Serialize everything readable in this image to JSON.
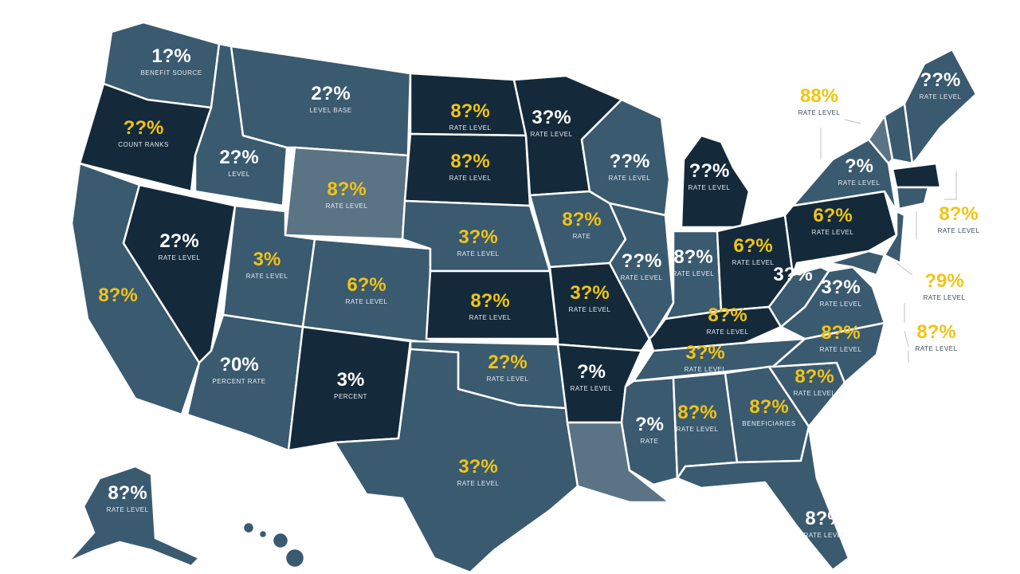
{
  "colors": {
    "background": "#ffffff",
    "dark": "#142a3b",
    "mid": "#3a5a70",
    "light": "#5b7485",
    "label_white": "#ffffff",
    "label_yellow": "#f2c414",
    "callout_text": "#3a4a58"
  },
  "states": [
    {
      "id": "WA",
      "pct": "1?%",
      "sub": "BENEFIT SOURCE"
    },
    {
      "id": "OR",
      "pct": "??%",
      "sub": "COUNT RANKS"
    },
    {
      "id": "CA",
      "pct": "8?%",
      "sub": ""
    },
    {
      "id": "NV",
      "pct": "2?%",
      "sub": "RATE LEVEL"
    },
    {
      "id": "ID",
      "pct": "2?%",
      "sub": "LEVEL"
    },
    {
      "id": "MT",
      "pct": "2?%",
      "sub": "LEVEL BASE"
    },
    {
      "id": "WY",
      "pct": "8?%",
      "sub": "RATE LEVEL"
    },
    {
      "id": "UT",
      "pct": "3%",
      "sub": "RATE LEVEL"
    },
    {
      "id": "CO",
      "pct": "6?%",
      "sub": "RATE LEVEL"
    },
    {
      "id": "AZ",
      "pct": "?0%",
      "sub": "PERCENT RATE"
    },
    {
      "id": "NM",
      "pct": "3%",
      "sub": "PERCENT"
    },
    {
      "id": "ND",
      "pct": "8?%",
      "sub": "RATE LEVEL"
    },
    {
      "id": "SD",
      "pct": "8?%",
      "sub": "RATE LEVEL"
    },
    {
      "id": "NE",
      "pct": "3?%",
      "sub": "RATE LEVEL"
    },
    {
      "id": "KS",
      "pct": "8?%",
      "sub": "RATE LEVEL"
    },
    {
      "id": "OK",
      "pct": "2?%",
      "sub": "RATE LEVEL"
    },
    {
      "id": "TX",
      "pct": "3?%",
      "sub": "RATE LEVEL"
    },
    {
      "id": "MN",
      "pct": "3?%",
      "sub": "RATE LEVEL"
    },
    {
      "id": "IA",
      "pct": "8?%",
      "sub": "RATE"
    },
    {
      "id": "MO",
      "pct": "3?%",
      "sub": "RATE LEVEL"
    },
    {
      "id": "AR",
      "pct": "?%",
      "sub": "RATE LEVEL"
    },
    {
      "id": "LA",
      "pct": "",
      "sub": ""
    },
    {
      "id": "WI",
      "pct": "??%",
      "sub": "RATE LEVEL"
    },
    {
      "id": "MI",
      "pct": "??%",
      "sub": "RATE LEVEL"
    },
    {
      "id": "IL",
      "pct": "??%",
      "sub": "RATE LEVEL"
    },
    {
      "id": "IN",
      "pct": "8?%",
      "sub": "RATE LEVEL"
    },
    {
      "id": "OH",
      "pct": "6?%",
      "sub": "RATE LEVEL"
    },
    {
      "id": "KY",
      "pct": "8?%",
      "sub": "RATE LEVEL"
    },
    {
      "id": "TN",
      "pct": "3?%",
      "sub": "RATE LEVEL"
    },
    {
      "id": "MS",
      "pct": "?%",
      "sub": "RATE"
    },
    {
      "id": "AL",
      "pct": "8?%",
      "sub": "RATE LEVEL"
    },
    {
      "id": "GA",
      "pct": "8?%",
      "sub": "BENEFICIARIES"
    },
    {
      "id": "FL",
      "pct": "8?%",
      "sub": "RATE LEVEL"
    },
    {
      "id": "SC",
      "pct": "8?%",
      "sub": "RATE LEVEL"
    },
    {
      "id": "NC",
      "pct": "8?%",
      "sub": "RATE LEVEL"
    },
    {
      "id": "VA",
      "pct": "3?%",
      "sub": "RATE LEVEL"
    },
    {
      "id": "WV",
      "pct": "3?%",
      "sub": ""
    },
    {
      "id": "PA",
      "pct": "6?%",
      "sub": "RATE LEVEL"
    },
    {
      "id": "NY",
      "pct": "?%",
      "sub": "RATE LEVEL"
    },
    {
      "id": "ME",
      "pct": "??%",
      "sub": "RATE LEVEL"
    },
    {
      "id": "AK",
      "pct": "8?%",
      "sub": "RATE LEVEL"
    }
  ],
  "callouts": [
    {
      "id": "NE-top",
      "pct": "88%",
      "sub": "RATE LEVEL"
    },
    {
      "id": "NE-mid",
      "pct": "8?%",
      "sub": "RATE LEVEL"
    },
    {
      "id": "NE-low1",
      "pct": "?9%",
      "sub": "RATE LEVEL"
    },
    {
      "id": "NE-low2",
      "pct": "8?%",
      "sub": "RATE LEVEL"
    }
  ]
}
